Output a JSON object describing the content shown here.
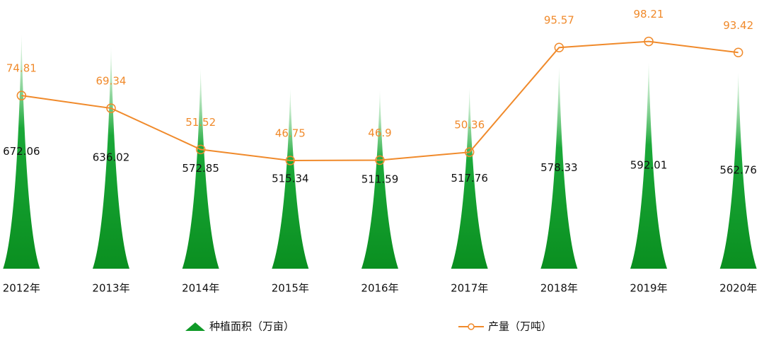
{
  "chart_data": {
    "type": "bar-line",
    "categories": [
      "2012年",
      "2013年",
      "2014年",
      "2015年",
      "2016年",
      "2017年",
      "2018年",
      "2019年",
      "2020年"
    ],
    "series": [
      {
        "name": "种植面积（万亩）",
        "type": "bar",
        "color": "#109a28",
        "values": [
          672.06,
          636.02,
          572.85,
          515.34,
          511.59,
          517.76,
          578.33,
          592.01,
          562.76
        ]
      },
      {
        "name": "产量（万吨）",
        "type": "line",
        "axis": "y2",
        "color": "#f08a2b",
        "values": [
          74.81,
          69.34,
          51.52,
          46.75,
          46.9,
          50.36,
          95.57,
          98.21,
          93.42
        ]
      }
    ],
    "ylim": [
      0,
      730
    ],
    "y2lim": [
      0,
      110
    ],
    "legend": "bottom"
  }
}
